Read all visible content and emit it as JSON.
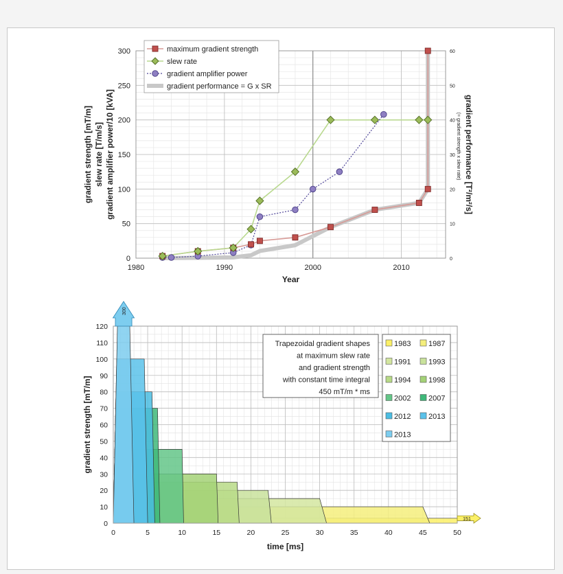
{
  "chart_data": [
    {
      "type": "line",
      "xlabel": "Year",
      "ylabel_lines": [
        "gradient strength [mT/m]",
        "slew rate [T/m/s]",
        "gradient amplifier power/10 [kVA]"
      ],
      "y2label": "gradient performance [T²/m²/s]",
      "y2sublabel": "(= gradient strength x slew rate)",
      "xlim": [
        1980,
        2015
      ],
      "xticks": [
        1980,
        1990,
        2000,
        2010
      ],
      "ylim": [
        0,
        300
      ],
      "yticks": [
        0,
        50,
        100,
        150,
        200,
        250,
        300
      ],
      "y2lim": [
        0,
        60
      ],
      "y2ticks": [
        0,
        10,
        20,
        30,
        40,
        50,
        60
      ],
      "grid": true,
      "legend_position": "top-left",
      "series": [
        {
          "name": "maximum gradient strength",
          "color": "#b03a36",
          "marker": "square",
          "x": [
            1983,
            1987,
            1991,
            1993,
            1994,
            1998,
            2002,
            2007,
            2012,
            2013,
            2013
          ],
          "y": [
            3,
            10,
            15,
            20,
            25,
            30,
            45,
            70,
            80,
            100,
            300
          ]
        },
        {
          "name": "slew rate",
          "color": "#7fae3a",
          "marker": "diamond",
          "x": [
            1983,
            1987,
            1991,
            1993,
            1994,
            1998,
            2002,
            2007,
            2012,
            2013
          ],
          "y": [
            3,
            10,
            15,
            42,
            83,
            125,
            200,
            200,
            200,
            200
          ]
        },
        {
          "name": "gradient amplifier power",
          "color": "#6b5a9e",
          "marker": "circle",
          "x": [
            1983,
            1984,
            1987,
            1991,
            1993,
            1994,
            1998,
            2000,
            2003,
            2008
          ],
          "y": [
            1,
            1,
            3,
            8,
            19,
            60,
            70,
            100,
            125,
            208
          ]
        },
        {
          "name": "gradient performance = G x SR",
          "color": "#c8c8c8",
          "marker": "none",
          "x": [
            1983,
            1987,
            1991,
            1993,
            1994,
            1998,
            2002,
            2007,
            2012,
            2013,
            2013
          ],
          "y2": [
            0.01,
            0.1,
            0.225,
            0.84,
            2.075,
            3.75,
            9,
            14,
            16,
            20,
            60
          ]
        }
      ]
    },
    {
      "type": "area",
      "xlabel": "time [ms]",
      "ylabel": "gradient strength [mT/m]",
      "xlim": [
        0,
        50
      ],
      "xticks": [
        0,
        5,
        10,
        15,
        20,
        25,
        30,
        35,
        40,
        45,
        50
      ],
      "ylim": [
        0,
        120
      ],
      "yticks": [
        0,
        10,
        20,
        30,
        40,
        50,
        60,
        70,
        80,
        90,
        100,
        110,
        120
      ],
      "grid": true,
      "annotation_lines": [
        "Trapezoidal gradient shapes",
        "at maximum slew rate",
        "and gradient strength",
        "with constant time integral",
        "450 mT/m * ms"
      ],
      "overflow_labels": {
        "top": "300",
        "right": "151"
      },
      "legend_position": "right",
      "series": [
        {
          "name": "1983",
          "color": "#fbf067",
          "amplitude": 3,
          "ramp_ms": 1.0
        },
        {
          "name": "1987",
          "color": "#f4ee7c",
          "amplitude": 10,
          "ramp_ms": 1.0
        },
        {
          "name": "1991",
          "color": "#d3e6a0",
          "amplitude": 15,
          "ramp_ms": 1.0
        },
        {
          "name": "1993",
          "color": "#c9e29c",
          "amplitude": 20,
          "ramp_ms": 0.48
        },
        {
          "name": "1994",
          "color": "#b8da87",
          "amplitude": 25,
          "ramp_ms": 0.3
        },
        {
          "name": "1998",
          "color": "#a4d277",
          "amplitude": 30,
          "ramp_ms": 0.24
        },
        {
          "name": "2002",
          "color": "#64c688",
          "amplitude": 45,
          "ramp_ms": 0.225
        },
        {
          "name": "2007",
          "color": "#3fb97a",
          "amplitude": 70,
          "ramp_ms": 0.35
        },
        {
          "name": "2012",
          "color": "#4bbde2",
          "amplitude": 80,
          "ramp_ms": 0.4
        },
        {
          "name": "2013",
          "color": "#5ac2ea",
          "amplitude": 100,
          "ramp_ms": 0.5
        },
        {
          "name": "2013",
          "color": "#7dcdef",
          "amplitude": 300,
          "ramp_ms": 1.5
        }
      ]
    }
  ]
}
